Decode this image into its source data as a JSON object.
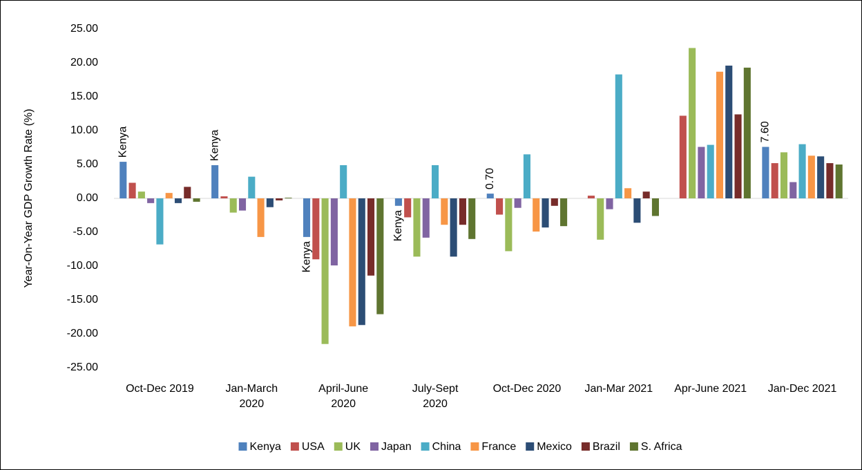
{
  "chart_data": {
    "type": "bar",
    "ylabel": "Year-On-Year GDP Growth Rate (%)",
    "categories": [
      "Oct-Dec 2019",
      "Jan-March 2020",
      "April-June 2020",
      "July-Sept 2020",
      "Oct-Dec 2020",
      "Jan-Mar 2021",
      "Apr-June 2021",
      "Jan-Dec 2021"
    ],
    "series": [
      {
        "name": "Kenya",
        "color": "#4f81bd",
        "values": [
          5.4,
          4.9,
          -5.7,
          -1.1,
          0.7,
          null,
          null,
          7.6
        ],
        "value_labels": [
          null,
          null,
          null,
          null,
          "0.70",
          null,
          null,
          "7.60"
        ]
      },
      {
        "name": "USA",
        "color": "#c0504d",
        "values": [
          2.3,
          0.3,
          -9.0,
          -2.8,
          -2.4,
          0.4,
          12.2,
          5.2
        ]
      },
      {
        "name": "UK",
        "color": "#9bbb59",
        "values": [
          1.0,
          -2.1,
          -21.5,
          -8.6,
          -7.8,
          -6.1,
          22.2,
          6.8
        ]
      },
      {
        "name": "Japan",
        "color": "#8064a2",
        "values": [
          -0.7,
          -1.8,
          -9.9,
          -5.8,
          -1.4,
          -1.6,
          7.6,
          2.4
        ]
      },
      {
        "name": "China",
        "color": "#4bacc6",
        "values": [
          -6.8,
          3.2,
          4.9,
          4.9,
          6.5,
          18.3,
          7.9,
          8.0
        ]
      },
      {
        "name": "France",
        "color": "#f79646",
        "values": [
          0.8,
          -5.7,
          -18.9,
          -3.9,
          -4.9,
          1.5,
          18.7,
          6.3
        ]
      },
      {
        "name": "Mexico",
        "color": "#2c4d75",
        "values": [
          -0.7,
          -1.3,
          -18.7,
          -8.6,
          -4.3,
          -3.6,
          19.6,
          6.2
        ]
      },
      {
        "name": "Brazil",
        "color": "#772c2a",
        "values": [
          1.7,
          -0.3,
          -11.4,
          -3.9,
          -1.1,
          1.0,
          12.4,
          5.2
        ]
      },
      {
        "name": "S. Africa",
        "color": "#5f7530",
        "values": [
          -0.5,
          0.1,
          -17.1,
          -6.0,
          -4.1,
          -2.6,
          19.3,
          5.0
        ]
      }
    ],
    "annotations": [
      {
        "text": "Kenya",
        "category": "Oct-Dec 2019"
      },
      {
        "text": "Kenya",
        "category": "Jan-March 2020"
      },
      {
        "text": "Kenya",
        "category": "April-June 2020"
      },
      {
        "text": "Kenya",
        "category": "July-Sept 2020"
      }
    ],
    "ylim": [
      -25,
      25
    ],
    "yticks": [
      {
        "value": -25,
        "label": "-25.00"
      },
      {
        "value": -20,
        "label": "-20.00"
      },
      {
        "value": -15,
        "label": "-15.00"
      },
      {
        "value": -10,
        "label": "-10.00"
      },
      {
        "value": -5,
        "label": "-5.00"
      },
      {
        "value": 0,
        "label": "0.00"
      },
      {
        "value": 5,
        "label": "5.00"
      },
      {
        "value": 10,
        "label": "10.00"
      },
      {
        "value": 15,
        "label": "15.00"
      },
      {
        "value": 20,
        "label": "20.00"
      },
      {
        "value": 25,
        "label": "25.00"
      }
    ],
    "grid": false,
    "legend": "bottom"
  }
}
